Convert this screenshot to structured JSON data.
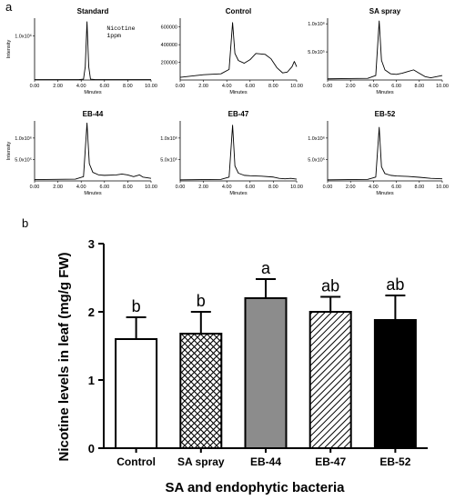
{
  "panel_a_letter": "a",
  "panel_b_letter": "b",
  "chart_data": [
    {
      "type": "line",
      "title": "Standard",
      "xlabel": "Minutes",
      "ylabel": "Intensity",
      "xlim": [
        0,
        10
      ],
      "x_ticks": [
        "0.00",
        "2.00",
        "4.00",
        "6.00",
        "8.00",
        "10.00"
      ],
      "y_ticks": [
        "1.0x10⁶"
      ],
      "ylim": [
        0,
        1400000
      ],
      "annotation_lines": [
        "Nicotine",
        "1ppm"
      ],
      "peak_time": 4.5,
      "points": [
        [
          0,
          8000
        ],
        [
          3.8,
          8000
        ],
        [
          4.2,
          20000
        ],
        [
          4.35,
          300000
        ],
        [
          4.5,
          1320000
        ],
        [
          4.65,
          300000
        ],
        [
          4.8,
          20000
        ],
        [
          5.2,
          8000
        ],
        [
          10,
          8000
        ]
      ]
    },
    {
      "type": "line",
      "title": "Control",
      "xlabel": "Minutes",
      "ylabel": "",
      "xlim": [
        0,
        10
      ],
      "x_ticks": [
        "0.00",
        "2.00",
        "4.00",
        "6.00",
        "8.00",
        "10.00"
      ],
      "y_ticks": [
        "200000",
        "400000",
        "600000"
      ],
      "ylim": [
        0,
        700000
      ],
      "peak_time": 4.5,
      "points": [
        [
          0,
          30000
        ],
        [
          2,
          60000
        ],
        [
          3.5,
          70000
        ],
        [
          4.2,
          120000
        ],
        [
          4.5,
          650000
        ],
        [
          4.7,
          300000
        ],
        [
          5,
          220000
        ],
        [
          5.5,
          190000
        ],
        [
          6,
          230000
        ],
        [
          6.5,
          300000
        ],
        [
          7.3,
          290000
        ],
        [
          7.8,
          240000
        ],
        [
          8.3,
          140000
        ],
        [
          8.8,
          80000
        ],
        [
          9.2,
          90000
        ],
        [
          9.6,
          150000
        ],
        [
          9.8,
          210000
        ],
        [
          10,
          150000
        ]
      ]
    },
    {
      "type": "line",
      "title": "SA spray",
      "xlabel": "Minutes",
      "ylabel": "",
      "xlim": [
        0,
        10
      ],
      "x_ticks": [
        "0.00",
        "2.00",
        "4.00",
        "6.00",
        "8.00",
        "10.00"
      ],
      "y_ticks": [
        "5.0x10⁵",
        "1.0x10⁶"
      ],
      "ylim": [
        0,
        1100000
      ],
      "peak_time": 4.5,
      "points": [
        [
          0,
          20000
        ],
        [
          3.5,
          30000
        ],
        [
          4.2,
          80000
        ],
        [
          4.5,
          1050000
        ],
        [
          4.7,
          350000
        ],
        [
          5,
          180000
        ],
        [
          5.5,
          110000
        ],
        [
          6,
          100000
        ],
        [
          6.5,
          120000
        ],
        [
          7,
          150000
        ],
        [
          7.5,
          180000
        ],
        [
          8,
          120000
        ],
        [
          8.5,
          60000
        ],
        [
          9,
          40000
        ],
        [
          9.5,
          60000
        ],
        [
          10,
          80000
        ]
      ]
    },
    {
      "type": "line",
      "title": "EB-44",
      "xlabel": "Minutes",
      "ylabel": "Intensity",
      "xlim": [
        0,
        10
      ],
      "x_ticks": [
        "0.00",
        "2.00",
        "4.00",
        "6.00",
        "8.00",
        "10.00"
      ],
      "y_ticks": [
        "5.0x10⁵",
        "1.0x10⁶"
      ],
      "ylim": [
        0,
        1400000
      ],
      "peak_time": 4.5,
      "points": [
        [
          0,
          30000
        ],
        [
          3.5,
          40000
        ],
        [
          4.2,
          100000
        ],
        [
          4.5,
          1350000
        ],
        [
          4.7,
          400000
        ],
        [
          5,
          200000
        ],
        [
          5.5,
          140000
        ],
        [
          6,
          130000
        ],
        [
          7,
          140000
        ],
        [
          7.5,
          160000
        ],
        [
          8,
          140000
        ],
        [
          8.5,
          100000
        ],
        [
          9,
          140000
        ],
        [
          9.3,
          90000
        ],
        [
          10,
          60000
        ]
      ]
    },
    {
      "type": "line",
      "title": "EB-47",
      "xlabel": "Minutes",
      "ylabel": "",
      "xlim": [
        0,
        10
      ],
      "x_ticks": [
        "0.00",
        "2.00",
        "4.00",
        "6.00",
        "8.00",
        "10.00"
      ],
      "y_ticks": [
        "5.0x10⁵",
        "1.0x10⁶"
      ],
      "ylim": [
        0,
        1400000
      ],
      "peak_time": 4.5,
      "points": [
        [
          0,
          25000
        ],
        [
          3.5,
          35000
        ],
        [
          4.2,
          90000
        ],
        [
          4.5,
          1300000
        ],
        [
          4.7,
          350000
        ],
        [
          5,
          180000
        ],
        [
          5.5,
          130000
        ],
        [
          6,
          120000
        ],
        [
          7,
          110000
        ],
        [
          8,
          90000
        ],
        [
          8.5,
          60000
        ],
        [
          9,
          50000
        ],
        [
          9.5,
          60000
        ],
        [
          10,
          40000
        ]
      ]
    },
    {
      "type": "line",
      "title": "EB-52",
      "xlabel": "Minutes",
      "ylabel": "",
      "xlim": [
        0,
        10
      ],
      "x_ticks": [
        "0.00",
        "2.00",
        "4.00",
        "6.00",
        "8.00",
        "10.00"
      ],
      "y_ticks": [
        "5.0x10⁵",
        "1.0x10⁶"
      ],
      "ylim": [
        0,
        1400000
      ],
      "peak_time": 4.5,
      "points": [
        [
          0,
          25000
        ],
        [
          3.5,
          35000
        ],
        [
          4.2,
          90000
        ],
        [
          4.5,
          1250000
        ],
        [
          4.7,
          330000
        ],
        [
          5,
          170000
        ],
        [
          5.5,
          130000
        ],
        [
          6,
          115000
        ],
        [
          7,
          105000
        ],
        [
          8,
          85000
        ],
        [
          9,
          60000
        ],
        [
          10,
          50000
        ]
      ]
    },
    {
      "type": "bar",
      "title": "",
      "categories": [
        "Control",
        "SA spray",
        "EB-44",
        "EB-47",
        "EB-52"
      ],
      "values": [
        1.6,
        1.68,
        2.2,
        2.0,
        1.88
      ],
      "errors": [
        0.32,
        0.32,
        0.28,
        0.22,
        0.36
      ],
      "significance": [
        "b",
        "b",
        "a",
        "ab",
        "ab"
      ],
      "fills": [
        "#ffffff",
        "crosshatch",
        "#8c8c8c",
        "diagonal",
        "#000000"
      ],
      "xlabel": "SA and endophytic bacteria",
      "ylabel": "Nicotine levels in leaf (mg/g FW)",
      "ylim": [
        0,
        3
      ],
      "y_ticks": [
        0,
        1,
        2,
        3
      ]
    }
  ]
}
